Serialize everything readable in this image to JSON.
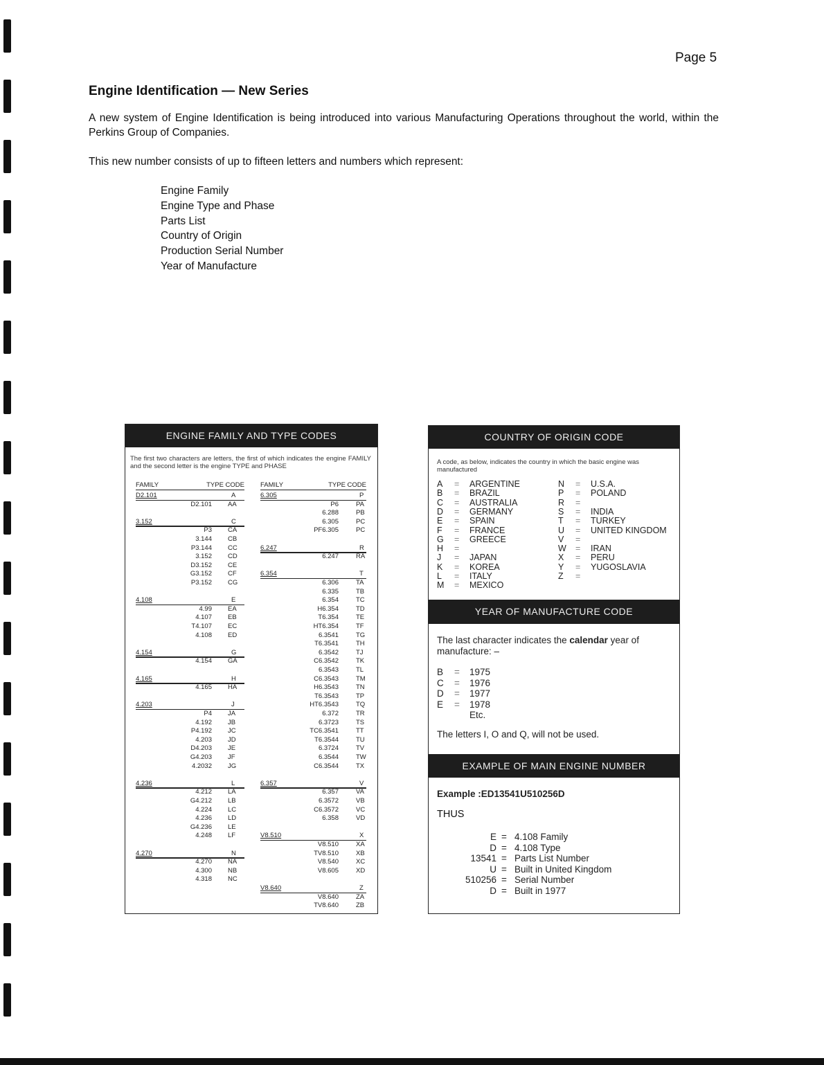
{
  "page_label": "Page 5",
  "title": "Engine Identification — New Series",
  "intro": "A new system of Engine Identification is being introduced into various Manufacturing Operations throughout the world, within the Perkins Group of Companies.",
  "lead": "This new number consists of up to fifteen letters and numbers which represent:",
  "items": [
    "Engine Family",
    "Engine Type and Phase",
    "Parts List",
    "Country of Origin",
    "Production Serial Number",
    "Year of Manufacture"
  ],
  "family_panel": {
    "header": "ENGINE FAMILY AND TYPE CODES",
    "description": "The first two characters are letters, the first of which indicates the engine FAMILY and the second letter is the engine TYPE and PHASE",
    "col_family": "FAMILY",
    "col_type_code": "TYPE CODE",
    "columns": [
      [
        {
          "family": "D2.101",
          "code": "A",
          "types": [
            [
              "D2.101",
              "AA"
            ]
          ]
        },
        {
          "family": "3.152",
          "code": "C",
          "types": [
            [
              "P3",
              "CA"
            ],
            [
              "3.144",
              "CB"
            ],
            [
              "P3.144",
              "CC"
            ],
            [
              "3.152",
              "CD"
            ],
            [
              "D3.152",
              "CE"
            ],
            [
              "G3.152",
              "CF"
            ],
            [
              "P3.152",
              "CG"
            ]
          ]
        },
        {
          "family": "4.108",
          "code": "E",
          "types": [
            [
              "4.99",
              "EA"
            ],
            [
              "4.107",
              "EB"
            ],
            [
              "T4.107",
              "EC"
            ],
            [
              "4.108",
              "ED"
            ]
          ]
        },
        {
          "family": "4.154",
          "code": "G",
          "types": [
            [
              "4.154",
              "GA"
            ]
          ]
        },
        {
          "family": "4.165",
          "code": "H",
          "types": [
            [
              "4.165",
              "HA"
            ]
          ]
        },
        {
          "family": "4.203",
          "code": "J",
          "types": [
            [
              "P4",
              "JA"
            ],
            [
              "4.192",
              "JB"
            ],
            [
              "P4.192",
              "JC"
            ],
            [
              "4.203",
              "JD"
            ],
            [
              "D4.203",
              "JE"
            ],
            [
              "G4.203",
              "JF"
            ],
            [
              "4.2032",
              "JG"
            ]
          ]
        },
        {
          "family": "4.236",
          "code": "L",
          "types": [
            [
              "4.212",
              "LA"
            ],
            [
              "G4.212",
              "LB"
            ],
            [
              "4.224",
              "LC"
            ],
            [
              "4.236",
              "LD"
            ],
            [
              "G4.236",
              "LE"
            ],
            [
              "4.248",
              "LF"
            ]
          ]
        },
        {
          "family": "4.270",
          "code": "N",
          "types": [
            [
              "4.270",
              "NA"
            ],
            [
              "4.300",
              "NB"
            ],
            [
              "4.318",
              "NC"
            ]
          ]
        }
      ],
      [
        {
          "family": "6.305",
          "code": "P",
          "types": [
            [
              "P6",
              "PA"
            ],
            [
              "6.288",
              "PB"
            ],
            [
              "6.305",
              "PC"
            ],
            [
              "PF6.305",
              "PC"
            ]
          ]
        },
        {
          "family": "6.247",
          "code": "R",
          "types": [
            [
              "6.247",
              "RA"
            ]
          ]
        },
        {
          "family": "6.354",
          "code": "T",
          "types": [
            [
              "6.306",
              "TA"
            ],
            [
              "6.335",
              "TB"
            ],
            [
              "6.354",
              "TC"
            ],
            [
              "H6.354",
              "TD"
            ],
            [
              "T6.354",
              "TE"
            ],
            [
              "HT6.354",
              "TF"
            ],
            [
              "6.3541",
              "TG"
            ],
            [
              "T6.3541",
              "TH"
            ],
            [
              "6.3542",
              "TJ"
            ],
            [
              "C6.3542",
              "TK"
            ],
            [
              "6.3543",
              "TL"
            ],
            [
              "C6.3543",
              "TM"
            ],
            [
              "H6.3543",
              "TN"
            ],
            [
              "T6.3543",
              "TP"
            ],
            [
              "HT6.3543",
              "TQ"
            ],
            [
              "6.372",
              "TR"
            ],
            [
              "6.3723",
              "TS"
            ],
            [
              "TC6.3541",
              "TT"
            ],
            [
              "T6.3544",
              "TU"
            ],
            [
              "6.3724",
              "TV"
            ],
            [
              "6.3544",
              "TW"
            ],
            [
              "C6.3544",
              "TX"
            ]
          ]
        },
        {
          "family": "6.357",
          "code": "V",
          "types": [
            [
              "6.357",
              "VA"
            ],
            [
              "6.3572",
              "VB"
            ],
            [
              "C6.3572",
              "VC"
            ],
            [
              "6.358",
              "VD"
            ]
          ]
        },
        {
          "family": "V8.510",
          "code": "X",
          "types": [
            [
              "V8.510",
              "XA"
            ],
            [
              "TV8.510",
              "XB"
            ],
            [
              "V8.540",
              "XC"
            ],
            [
              "V8.605",
              "XD"
            ]
          ]
        },
        {
          "family": "V8.640",
          "code": "Z",
          "types": [
            [
              "V8.640",
              "ZA"
            ],
            [
              "TV8.640",
              "ZB"
            ]
          ]
        }
      ]
    ]
  },
  "country_panel": {
    "header": "COUNTRY OF ORIGIN CODE",
    "description": "A code, as below, indicates the country in which the basic engine was manufactured",
    "left": [
      [
        "A",
        "ARGENTINE"
      ],
      [
        "B",
        "BRAZIL"
      ],
      [
        "C",
        "AUSTRALIA"
      ],
      [
        "D",
        "GERMANY"
      ],
      [
        "E",
        "SPAIN"
      ],
      [
        "F",
        "FRANCE"
      ],
      [
        "G",
        "GREECE"
      ],
      [
        "H",
        ""
      ],
      [
        "J",
        "JAPAN"
      ],
      [
        "K",
        "KOREA"
      ],
      [
        "L",
        "ITALY"
      ],
      [
        "M",
        "MEXICO"
      ]
    ],
    "right": [
      [
        "N",
        "U.S.A."
      ],
      [
        "P",
        "POLAND"
      ],
      [
        "R",
        ""
      ],
      [
        "S",
        "INDIA"
      ],
      [
        "T",
        "TURKEY"
      ],
      [
        "U",
        "UNITED KINGDOM"
      ],
      [
        "V",
        ""
      ],
      [
        "W",
        "IRAN"
      ],
      [
        "X",
        "PERU"
      ],
      [
        "Y",
        "YUGOSLAVIA"
      ],
      [
        "Z",
        ""
      ]
    ]
  },
  "year_panel": {
    "header": "YEAR OF MANUFACTURE CODE",
    "text_a": "The last character indicates the",
    "text_bold": "calendar",
    "text_b": "year of manufacture: –",
    "years": [
      [
        "B",
        "1975"
      ],
      [
        "C",
        "1976"
      ],
      [
        "D",
        "1977"
      ],
      [
        "E",
        "1978"
      ]
    ],
    "etc": "Etc.",
    "note": "The letters I, O and Q, will not be used."
  },
  "example_panel": {
    "header": "EXAMPLE OF MAIN ENGINE NUMBER",
    "example": "Example :ED13541U510256D",
    "thus": "THUS",
    "rows": [
      [
        "E",
        "4.108 Family"
      ],
      [
        "D",
        "4.108 Type"
      ],
      [
        "13541",
        "Parts List Number"
      ],
      [
        "U",
        "Built in United Kingdom"
      ],
      [
        "510256",
        "Serial Number"
      ],
      [
        "D",
        "Built in 1977"
      ]
    ]
  }
}
